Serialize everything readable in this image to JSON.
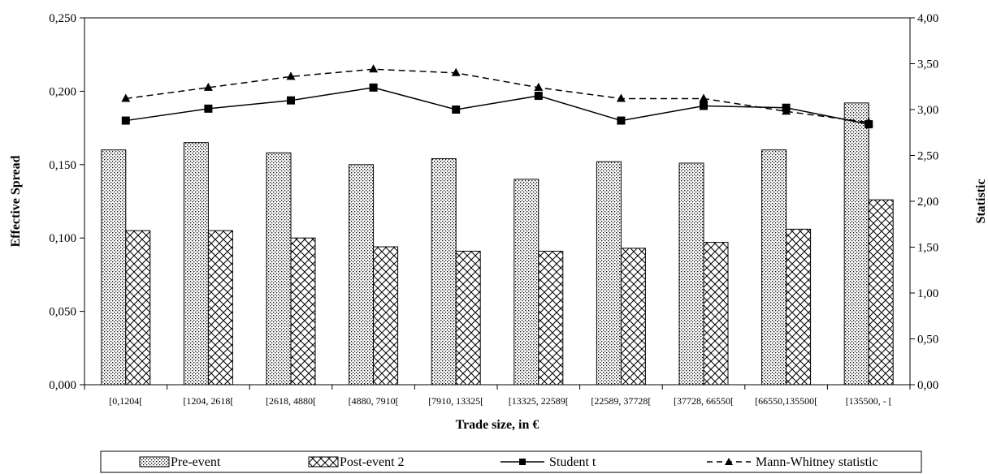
{
  "chart_data": {
    "type": "bar",
    "xlabel": "Trade size, in €",
    "ylabel": "Effective Spread",
    "y2label": "Statistic",
    "ylim": [
      0,
      0.25
    ],
    "y2lim": [
      0,
      4
    ],
    "yticks": [
      "0,000",
      "0,050",
      "0,100",
      "0,150",
      "0,200",
      "0,250"
    ],
    "y2ticks": [
      "0,00",
      "0,50",
      "1,00",
      "1,50",
      "2,00",
      "2,50",
      "3,00",
      "3,50",
      "4,00"
    ],
    "categories": [
      "[0,1204[",
      "[1204, 2618[",
      "[2618, 4880[",
      "[4880, 7910[",
      "[7910, 13325[",
      "[13325, 22589[",
      "[22589, 37728[",
      "[37728, 66550[",
      "[66550,135500[",
      "[135500, - ["
    ],
    "grid": false,
    "legend_position": "bottom",
    "series": [
      {
        "name": "Pre-event",
        "kind": "bar",
        "axis": "left",
        "pattern": "dots",
        "values": [
          0.16,
          0.165,
          0.158,
          0.15,
          0.154,
          0.14,
          0.152,
          0.151,
          0.16,
          0.192
        ]
      },
      {
        "name": "Post-event 2",
        "kind": "bar",
        "axis": "left",
        "pattern": "crosshatch",
        "values": [
          0.105,
          0.105,
          0.1,
          0.094,
          0.091,
          0.091,
          0.093,
          0.097,
          0.106,
          0.126
        ]
      },
      {
        "name": "Student t",
        "kind": "line",
        "axis": "right",
        "marker": "square",
        "dash": "solid",
        "values": [
          2.88,
          3.01,
          3.1,
          3.24,
          3.0,
          3.15,
          2.88,
          3.04,
          3.02,
          2.84
        ]
      },
      {
        "name": "Mann-Whitney statistic",
        "kind": "line",
        "axis": "right",
        "marker": "triangle",
        "dash": "dashed",
        "values": [
          3.12,
          3.24,
          3.36,
          3.44,
          3.4,
          3.24,
          3.12,
          3.12,
          2.98,
          2.86
        ]
      }
    ]
  }
}
